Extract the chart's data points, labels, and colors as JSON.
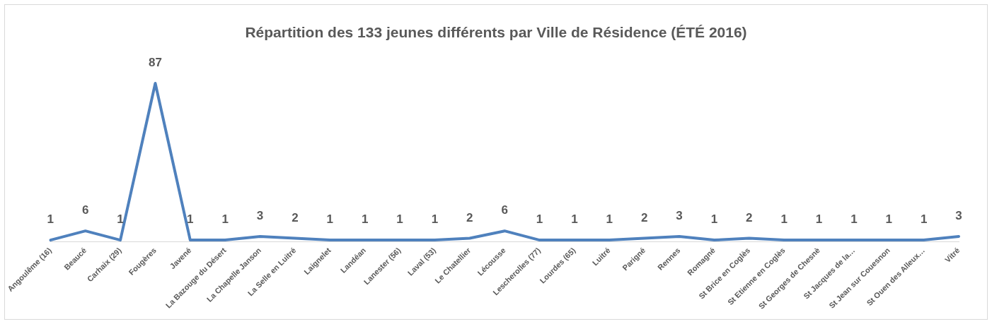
{
  "chart_data": {
    "type": "line",
    "title": "Répartition des 133 jeunes différents par Ville de Résidence (ÉTÉ 2016)",
    "categories": [
      "Angoulême (16)",
      "Beaucé",
      "Carhaix (29)",
      "Fougères",
      "Javené",
      "La Bazouge du Désert",
      "La Chapelle Janson",
      "La Selle en Luitré",
      "Laignelet",
      "Landéan",
      "Lanester (56)",
      "Laval (53)",
      "Le Chatellier",
      "Lécousse",
      "Lescherolles (77)",
      "Lourdes (65)",
      "Luitré",
      "Parigné",
      "Rennes",
      "Romagné",
      "St Brice en Coglès",
      "St Etienne en Coglès",
      "St Georges de Chesnè",
      "St Jacques de la…",
      "St Jean sur Couesnon",
      "St Ouen des Alleux…",
      "Vitré"
    ],
    "series": [
      {
        "color": "#4f81bd",
        "values": [
          1,
          6,
          1,
          87,
          1,
          1,
          3,
          2,
          1,
          1,
          1,
          1,
          2,
          6,
          1,
          1,
          1,
          2,
          3,
          1,
          2,
          1,
          1,
          1,
          1,
          1,
          3
        ]
      }
    ],
    "data_labels": true,
    "grid": false,
    "legend": false,
    "marker": "none",
    "line_style": "solid",
    "tick_labels": "x"
  }
}
